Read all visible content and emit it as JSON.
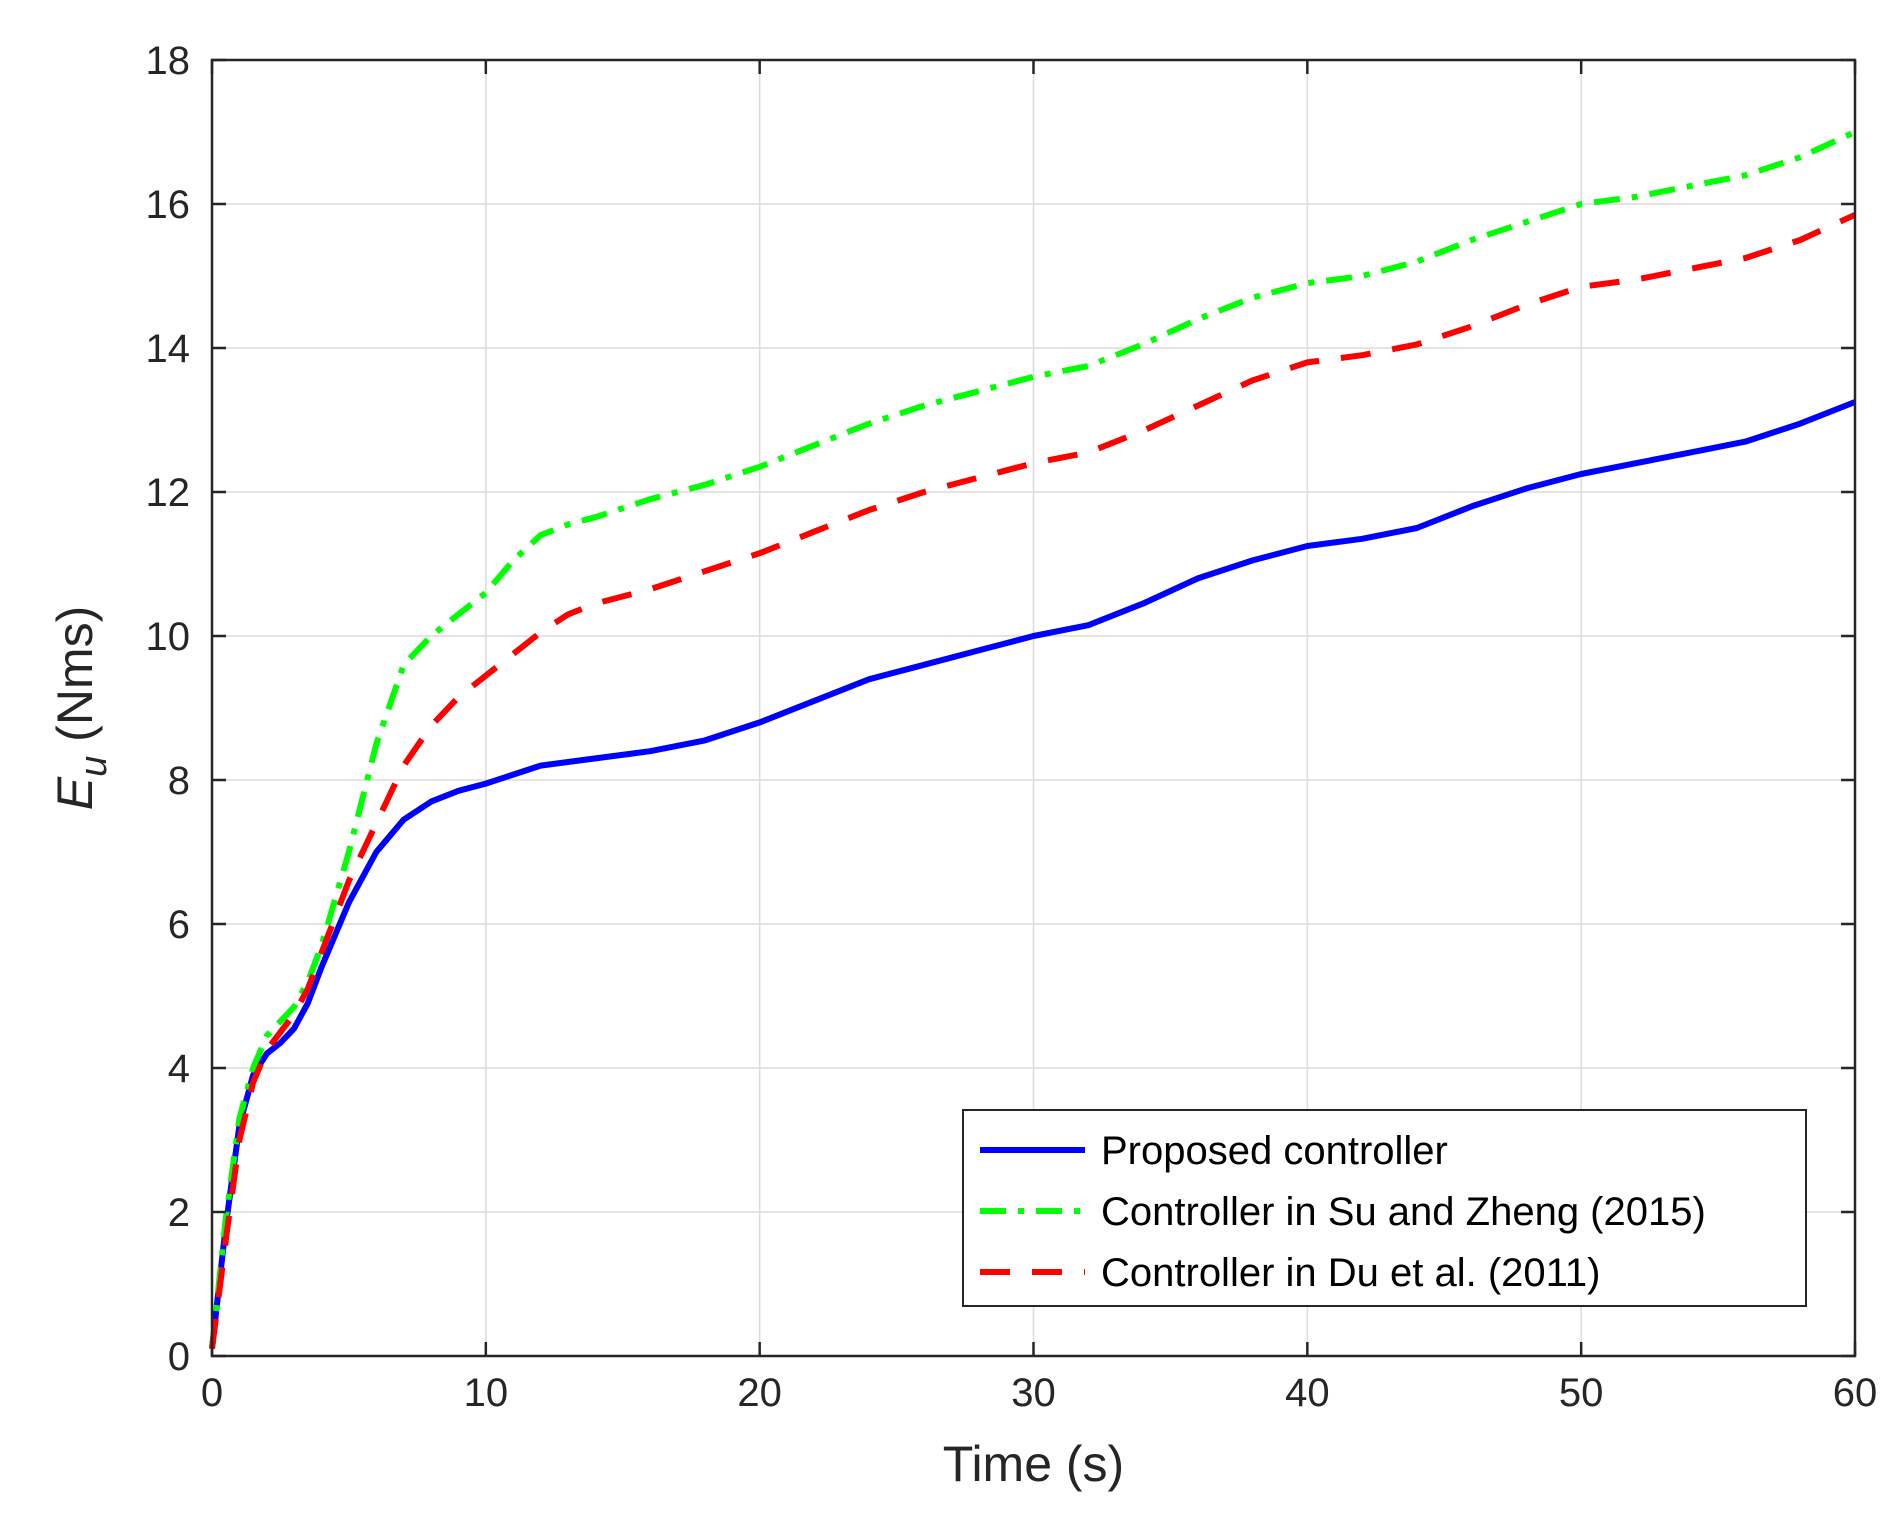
{
  "chart_data": {
    "type": "line",
    "xlabel": "Time (s)",
    "ylabel": {
      "main": "E",
      "subscript": "u",
      "unit": " (Nms)"
    },
    "xlim": [
      0,
      60
    ],
    "ylim": [
      0,
      18
    ],
    "xticks": [
      0,
      10,
      20,
      30,
      40,
      50,
      60
    ],
    "yticks": [
      0,
      2,
      4,
      6,
      8,
      10,
      12,
      14,
      16,
      18
    ],
    "grid": true,
    "legend_position": "bottom-right",
    "series": [
      {
        "name": "Proposed controller",
        "color": "#0000ff",
        "style": "solid",
        "x": [
          0,
          0.5,
          1,
          1.5,
          2,
          2.5,
          3,
          3.5,
          4,
          5,
          6,
          7,
          8,
          9,
          10,
          12,
          14,
          16,
          18,
          20,
          22,
          24,
          26,
          28,
          30,
          32,
          34,
          36,
          38,
          40,
          42,
          44,
          46,
          48,
          50,
          52,
          54,
          56,
          58,
          60
        ],
        "y": [
          0.1,
          1.8,
          3.2,
          3.9,
          4.2,
          4.35,
          4.55,
          4.9,
          5.4,
          6.3,
          7.0,
          7.45,
          7.7,
          7.85,
          7.95,
          8.2,
          8.3,
          8.4,
          8.55,
          8.8,
          9.1,
          9.4,
          9.6,
          9.8,
          10.0,
          10.15,
          10.45,
          10.8,
          11.05,
          11.25,
          11.35,
          11.5,
          11.8,
          12.05,
          12.25,
          12.4,
          12.55,
          12.7,
          12.95,
          13.25
        ]
      },
      {
        "name": "Controller in Su and Zheng (2015)",
        "color": "#00ff00",
        "style": "dash-dot",
        "x": [
          0,
          0.5,
          1,
          1.5,
          2,
          2.5,
          3,
          3.5,
          4,
          5,
          6,
          7,
          8,
          9,
          10,
          11,
          12,
          13,
          14,
          16,
          18,
          20,
          22,
          24,
          26,
          28,
          30,
          32,
          34,
          36,
          38,
          40,
          42,
          44,
          46,
          48,
          50,
          52,
          54,
          56,
          58,
          60
        ],
        "y": [
          0.1,
          1.9,
          3.3,
          4.0,
          4.45,
          4.65,
          4.85,
          5.2,
          5.7,
          7.0,
          8.5,
          9.6,
          10.0,
          10.3,
          10.6,
          11.05,
          11.4,
          11.55,
          11.65,
          11.9,
          12.1,
          12.35,
          12.65,
          12.95,
          13.2,
          13.4,
          13.6,
          13.75,
          14.05,
          14.4,
          14.7,
          14.9,
          15.0,
          15.2,
          15.5,
          15.75,
          16.0,
          16.1,
          16.25,
          16.4,
          16.65,
          17.0
        ]
      },
      {
        "name": "Controller in Du et al. (2011)",
        "color": "#ff0000",
        "style": "dashed",
        "x": [
          0,
          0.5,
          1,
          1.5,
          2,
          2.5,
          3,
          3.5,
          4,
          5,
          6,
          7,
          8,
          9,
          10,
          11,
          12,
          13,
          14,
          16,
          18,
          20,
          22,
          24,
          26,
          28,
          30,
          32,
          34,
          36,
          38,
          40,
          42,
          44,
          46,
          48,
          50,
          52,
          54,
          56,
          58,
          60
        ],
        "y": [
          0.1,
          1.6,
          3.0,
          3.8,
          4.25,
          4.5,
          4.75,
          5.1,
          5.6,
          6.6,
          7.4,
          8.2,
          8.75,
          9.15,
          9.45,
          9.75,
          10.05,
          10.3,
          10.45,
          10.65,
          10.9,
          11.15,
          11.45,
          11.75,
          12.0,
          12.2,
          12.4,
          12.55,
          12.85,
          13.2,
          13.55,
          13.8,
          13.9,
          14.05,
          14.3,
          14.6,
          14.85,
          14.95,
          15.1,
          15.25,
          15.5,
          15.85
        ]
      }
    ]
  }
}
